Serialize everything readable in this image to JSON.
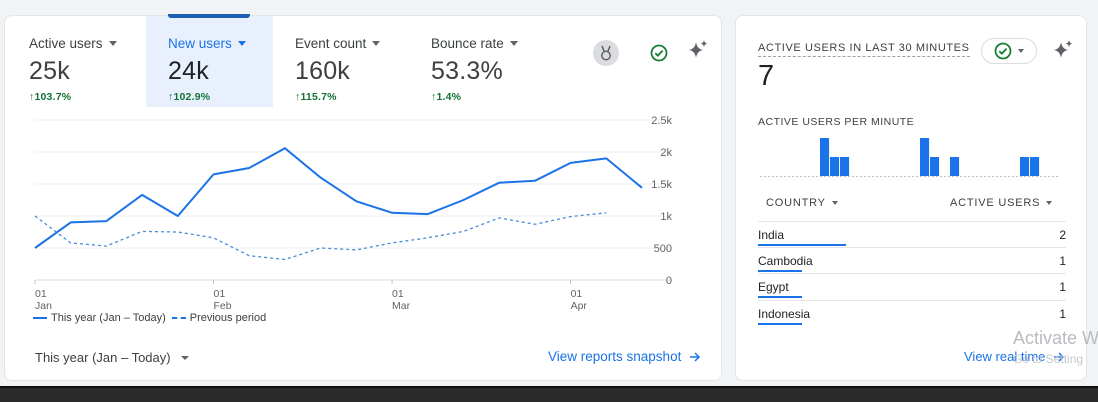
{
  "metrics": [
    {
      "label": "Active users",
      "value": "25k",
      "change": "103.7%"
    },
    {
      "label": "New users",
      "value": "24k",
      "change": "102.9%",
      "selected": true
    },
    {
      "label": "Event count",
      "value": "160k",
      "change": "115.7%"
    },
    {
      "label": "Bounce rate",
      "value": "53.3%",
      "change": "1.4%"
    }
  ],
  "icons": {
    "insights": "medal-icon",
    "status": "check-circle-icon",
    "sparkle": "sparkle-icon",
    "caret": "chevron-down-icon",
    "trend_up": "arrow-up-icon",
    "arrow_right": "arrow-right-icon"
  },
  "colors": {
    "accent": "#1a73e8",
    "positive": "#137333",
    "selected_bg": "#e8f0fe",
    "status_ok": "#188038"
  },
  "chart_data": {
    "type": "line",
    "y_ticks": [
      "2.5k",
      "2k",
      "1.5k",
      "1k",
      "500",
      "0"
    ],
    "ylim": [
      0,
      2500
    ],
    "x_ticks": [
      {
        "day": "01",
        "month": "Jan",
        "index": 0
      },
      {
        "day": "01",
        "month": "Feb",
        "index": 5
      },
      {
        "day": "01",
        "month": "Mar",
        "index": 10
      },
      {
        "day": "01",
        "month": "Apr",
        "index": 15
      }
    ],
    "series": [
      {
        "name": "This year (Jan – Today)",
        "style": "solid",
        "values": [
          500,
          900,
          920,
          1330,
          1000,
          1650,
          1750,
          2060,
          1600,
          1230,
          1050,
          1030,
          1250,
          1520,
          1550,
          1830,
          1900,
          1440
        ]
      },
      {
        "name": "Previous period",
        "style": "dashed",
        "values": [
          1000,
          580,
          530,
          760,
          750,
          660,
          380,
          320,
          500,
          470,
          580,
          660,
          760,
          970,
          870,
          990,
          1050
        ]
      }
    ],
    "legend_position": "bottom-left",
    "grid": true
  },
  "footer": {
    "date_range": "This year (Jan – Today)",
    "snapshot_link": "View reports snapshot"
  },
  "realtime": {
    "title": "ACTIVE USERS IN LAST 30 MINUTES",
    "value": "7",
    "per_minute_label": "ACTIVE USERS PER MINUTE",
    "per_minute": [
      0,
      0,
      0,
      0,
      0,
      0,
      2,
      1,
      1,
      0,
      0,
      0,
      0,
      0,
      0,
      0,
      2,
      1,
      0,
      1,
      0,
      0,
      0,
      0,
      0,
      0,
      1,
      1,
      0,
      0
    ],
    "country_header": "COUNTRY",
    "users_header": "ACTIVE USERS",
    "countries": [
      {
        "name": "India",
        "count": "2",
        "share": 1.0
      },
      {
        "name": "Cambodia",
        "count": "1",
        "share": 0.5
      },
      {
        "name": "Egypt",
        "count": "1",
        "share": 0.5
      },
      {
        "name": "Indonesia",
        "count": "1",
        "share": 0.5
      }
    ],
    "realtime_link": "View real time"
  },
  "watermark": {
    "line1": "Activate W",
    "line2": "Go to Setting"
  }
}
